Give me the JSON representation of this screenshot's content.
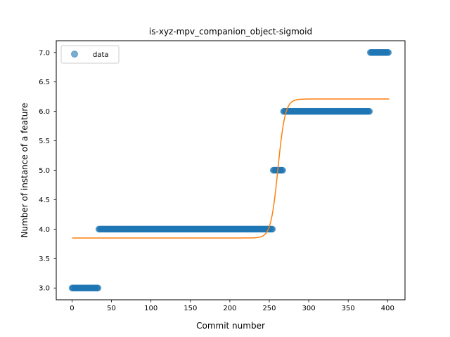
{
  "chart_data": {
    "type": "scatter",
    "title": "is-xyz-mpv_companion_object-sigmoid",
    "xlabel": "Commit number",
    "ylabel": "Number of instance of a feature",
    "xlim": [
      -20,
      422
    ],
    "ylim": [
      2.8,
      7.2
    ],
    "xticks": [
      0,
      50,
      100,
      150,
      200,
      250,
      300,
      350,
      400
    ],
    "yticks": [
      3.0,
      3.5,
      4.0,
      4.5,
      5.0,
      5.5,
      6.0,
      6.5,
      7.0
    ],
    "grid": false,
    "legend": {
      "position": "top-left",
      "entries": [
        "data"
      ]
    },
    "series": [
      {
        "name": "data",
        "kind": "points",
        "color": "#1f77b4",
        "alpha": 0.6,
        "segments": [
          {
            "x_from": 0,
            "x_to": 34,
            "y": 3.0
          },
          {
            "x_from": 34,
            "x_to": 255,
            "y": 4.0
          },
          {
            "x_from": 255,
            "x_to": 268,
            "y": 5.0
          },
          {
            "x_from": 268,
            "x_to": 378,
            "y": 6.0
          },
          {
            "x_from": 378,
            "x_to": 402,
            "y": 7.0
          }
        ]
      },
      {
        "kind": "line",
        "color": "#ff7f0e",
        "model": "sigmoid",
        "params": {
          "base": 3.85,
          "height": 2.36,
          "midpoint": 261,
          "rate": 0.22
        },
        "x_range": [
          0,
          402
        ]
      }
    ]
  }
}
